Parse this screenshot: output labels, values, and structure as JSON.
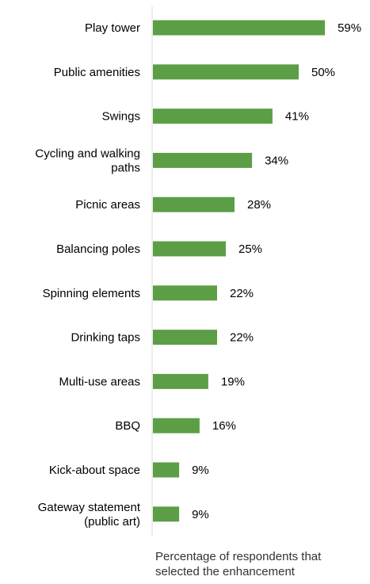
{
  "chart_data": {
    "type": "bar",
    "orientation": "horizontal",
    "categories": [
      "Play tower",
      "Public amenities",
      "Swings",
      "Cycling and walking paths",
      "Picnic areas",
      "Balancing poles",
      "Spinning elements",
      "Drinking taps",
      "Multi-use areas",
      "BBQ",
      "Kick-about space",
      "Gateway statement (public art)"
    ],
    "category_lines": [
      [
        "Play tower"
      ],
      [
        "Public amenities"
      ],
      [
        "Swings"
      ],
      [
        "Cycling and walking",
        "paths"
      ],
      [
        "Picnic areas"
      ],
      [
        "Balancing poles"
      ],
      [
        "Spinning elements"
      ],
      [
        "Drinking taps"
      ],
      [
        "Multi-use areas"
      ],
      [
        "BBQ"
      ],
      [
        "Kick-about space"
      ],
      [
        "Gateway statement",
        "(public art)"
      ]
    ],
    "values": [
      59,
      50,
      41,
      34,
      28,
      25,
      22,
      22,
      19,
      16,
      9,
      9
    ],
    "value_labels": [
      "59%",
      "50%",
      "41%",
      "34%",
      "28%",
      "25%",
      "22%",
      "22%",
      "19%",
      "16%",
      "9%",
      "9%"
    ],
    "xlabel": "Percentage of respondents that\nselected the enhancement",
    "ylabel": "",
    "title": "",
    "xlim": [
      0,
      70
    ],
    "grid": false,
    "legend": "none",
    "bar_color": "#5c9e46",
    "axis_color": "#d9d9d9"
  }
}
